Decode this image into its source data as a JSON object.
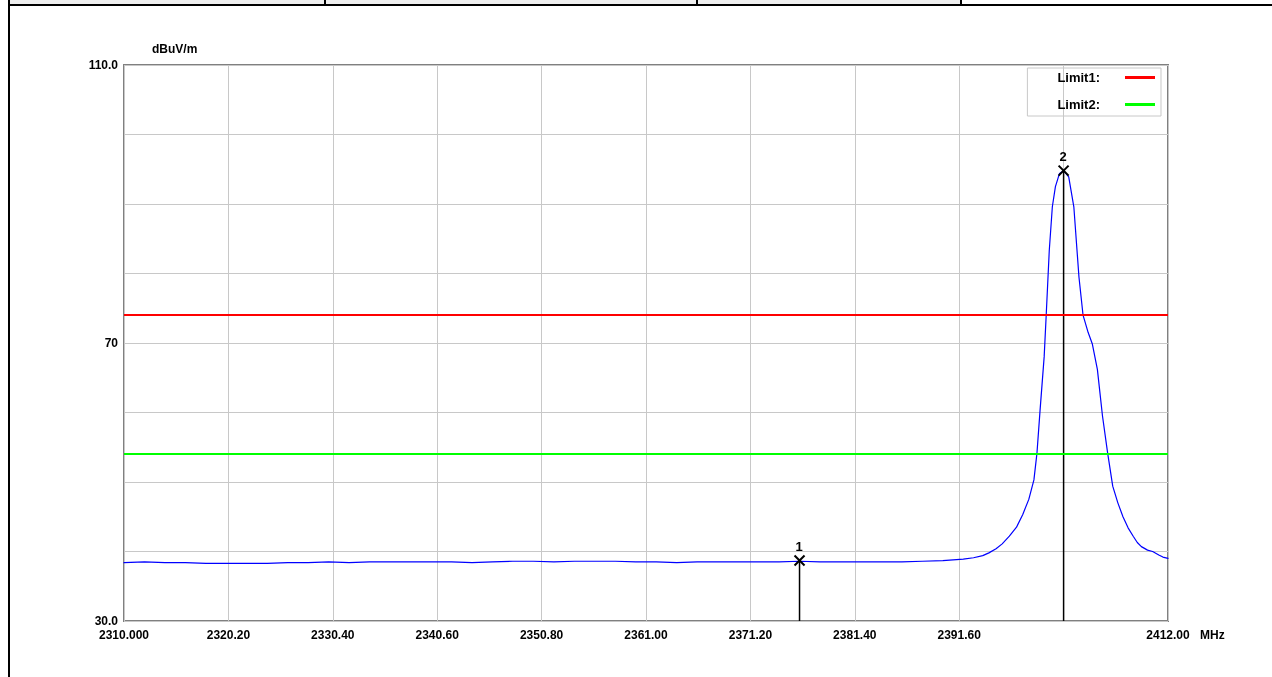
{
  "chart_data": {
    "type": "line",
    "ylabel": "dBuV/m",
    "xlabel": "MHz",
    "xlim": [
      2310,
      2412
    ],
    "xticks": [
      {
        "value": 2310,
        "label": "2310.000"
      },
      {
        "value": 2320.2,
        "label": "2320.20"
      },
      {
        "value": 2330.4,
        "label": "2330.40"
      },
      {
        "value": 2340.6,
        "label": "2340.60"
      },
      {
        "value": 2350.8,
        "label": "2350.80"
      },
      {
        "value": 2361,
        "label": "2361.00"
      },
      {
        "value": 2371.2,
        "label": "2371.20"
      },
      {
        "value": 2381.4,
        "label": "2381.40"
      },
      {
        "value": 2391.6,
        "label": "2391.60"
      },
      {
        "value": 2401.8,
        "label": null
      },
      {
        "value": 2412,
        "label": "2412.00"
      }
    ],
    "ylim": [
      30,
      110
    ],
    "yticks": [
      {
        "value": 30,
        "label": "30.0"
      },
      {
        "value": 40,
        "label": null
      },
      {
        "value": 50,
        "label": null
      },
      {
        "value": 60,
        "label": null
      },
      70,
      {
        "value": 80,
        "label": null
      },
      {
        "value": 90,
        "label": null
      },
      {
        "value": 100,
        "label": null
      },
      {
        "value": 110,
        "label": "110.0"
      }
    ],
    "grid": true,
    "legend": "top right",
    "marker": "none",
    "line_style": "solid",
    "series": [
      {
        "color": "#0000ff",
        "x": [
          2310,
          2312,
          2314,
          2316,
          2318,
          2320,
          2322,
          2324,
          2326,
          2328,
          2330,
          2332,
          2334,
          2336,
          2338,
          2340,
          2342,
          2344,
          2346,
          2348,
          2350,
          2352,
          2354,
          2356,
          2358,
          2360,
          2362,
          2364,
          2366,
          2368,
          2370,
          2372,
          2374,
          2376,
          2378,
          2380,
          2382,
          2384,
          2386,
          2388,
          2390,
          2391,
          2392,
          2393,
          2393.9,
          2394.5,
          2395.2,
          2395.8,
          2396.5,
          2397.2,
          2397.8,
          2398.4,
          2398.9,
          2399.2,
          2399.5,
          2399.9,
          2400.1,
          2400.4,
          2400.7,
          2401.0,
          2401.4,
          2401.8,
          2402.3,
          2402.8,
          2403.3,
          2403.7,
          2404.2,
          2404.6,
          2405.1,
          2405.6,
          2406.1,
          2406.6,
          2407.1,
          2407.6,
          2408.1,
          2408.6,
          2409.0,
          2409.4,
          2410.0,
          2410.5,
          2411.1,
          2411.5,
          2412
        ],
        "values": [
          38.4,
          38.5,
          38.4,
          38.4,
          38.3,
          38.3,
          38.3,
          38.3,
          38.4,
          38.4,
          38.5,
          38.4,
          38.5,
          38.5,
          38.5,
          38.5,
          38.5,
          38.4,
          38.5,
          38.6,
          38.6,
          38.5,
          38.6,
          38.6,
          38.6,
          38.5,
          38.5,
          38.4,
          38.5,
          38.5,
          38.5,
          38.5,
          38.5,
          38.6,
          38.5,
          38.5,
          38.5,
          38.5,
          38.5,
          38.6,
          38.7,
          38.8,
          38.9,
          39.1,
          39.4,
          39.8,
          40.4,
          41.1,
          42.2,
          43.5,
          45.3,
          47.5,
          50.3,
          54.2,
          60.3,
          68.0,
          74.0,
          83.3,
          89.6,
          92.5,
          94.4,
          94.8,
          93.9,
          89.6,
          79.5,
          74.0,
          71.5,
          69.9,
          66.2,
          59.5,
          54.2,
          49.4,
          47.0,
          45.0,
          43.4,
          42.2,
          41.3,
          40.7,
          40.2,
          40.0,
          39.5,
          39.2,
          39.0
        ]
      },
      {
        "type": "lollipop",
        "marker": "cross",
        "color": "#000000",
        "x": [
          2376.0,
          2401.8
        ],
        "values": [
          38.7,
          94.8
        ]
      }
    ],
    "ref_lines": [
      {
        "axis": "y",
        "value": 74,
        "label": "Limit1:",
        "color": "#ff0000"
      },
      {
        "axis": "y",
        "value": 54,
        "label": "Limit2:",
        "color": "#00ff00"
      }
    ],
    "annotations": [
      {
        "text": "1",
        "x": 2376.0,
        "y": 38.7
      },
      {
        "text": "2",
        "x": 2401.8,
        "y": 94.8
      }
    ]
  }
}
